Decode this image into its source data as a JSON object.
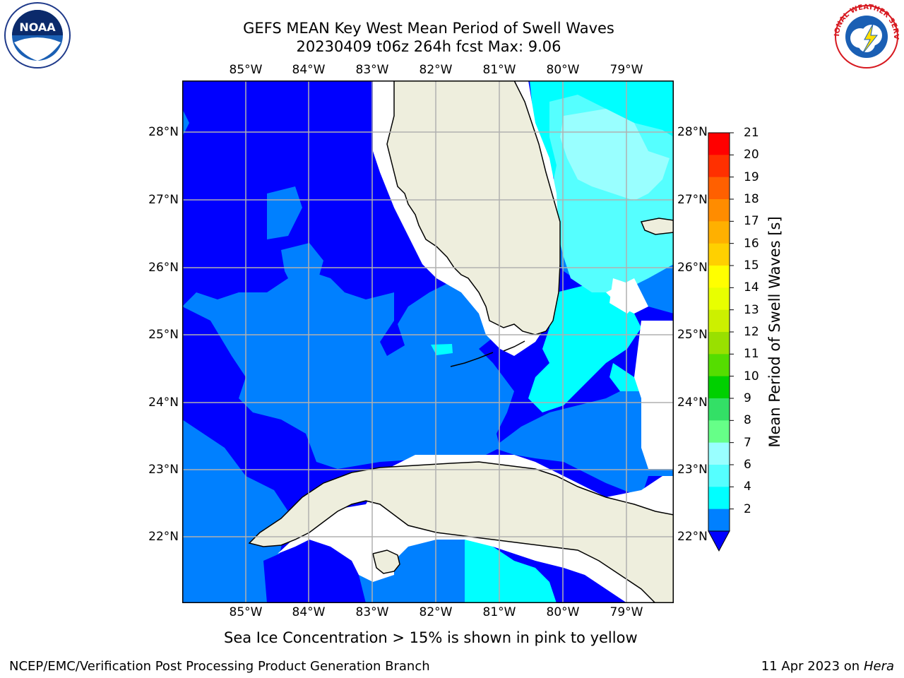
{
  "title": {
    "line1": "GEFS MEAN Key West Mean Period of Swell Waves",
    "line2": "20230409 t06z 264h fcst   Max: 9.06"
  },
  "logos": {
    "left": "noaa-logo",
    "right": "nws-logo",
    "left_text": "NOAA",
    "right_text": "NATIONAL WEATHER SERVICE"
  },
  "map": {
    "lon_labels": [
      "85°W",
      "84°W",
      "83°W",
      "82°W",
      "81°W",
      "80°W",
      "79°W"
    ],
    "lat_labels": [
      "28°N",
      "27°N",
      "26°N",
      "25°N",
      "24°N",
      "23°N",
      "22°N"
    ],
    "lon_range": [
      -86,
      -78.3
    ],
    "lat_range": [
      21.0,
      28.8
    ],
    "land_color": "#eeeedd",
    "grid": true
  },
  "colorbar": {
    "label": "Mean Period of Swell Waves [s]",
    "ticks": [
      "21",
      "20",
      "19",
      "18",
      "17",
      "16",
      "15",
      "14",
      "13",
      "12",
      "11",
      "10",
      "9",
      "8",
      "7",
      "6",
      "4",
      "2"
    ],
    "colors": [
      "#ff0000",
      "#ff3000",
      "#ff6000",
      "#ff8c00",
      "#ffb000",
      "#ffd000",
      "#ffff00",
      "#e8ff00",
      "#ccf000",
      "#99e000",
      "#55dd00",
      "#00d000",
      "#33e066",
      "#66ff88",
      "#99ffff",
      "#55ffff",
      "#00ffff",
      "#0080ff"
    ],
    "under_color": "#0000ff"
  },
  "footer": {
    "ice_note": "Sea Ice Concentration > 15% is shown in pink to yellow",
    "credit": "NCEP/EMC/Verification Post Processing Product Generation Branch",
    "date": "11 Apr 2023 on ",
    "host": "Hera"
  }
}
